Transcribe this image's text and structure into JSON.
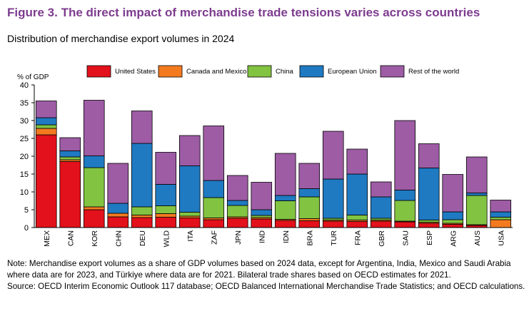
{
  "title": "Figure 3. The direct impact of merchandise trade tensions varies across countries",
  "subtitle": "Distribution of merchandise export volumes in 2024",
  "note": "Note: Merchandise export volumes as a share of GDP volumes based on 2024 data, except for Argentina, India, Mexico and Saudi Arabia where data are for 2023, and Türkiye where data are for 2021. Bilateral trade shares based on OECD estimates for 2021.",
  "source": "Source: OECD Interim Economic Outlook 117 database; OECD Balanced International Merchandise Trade Statistics; and OECD calculations.",
  "chart_data": {
    "type": "bar",
    "stacked": true,
    "ylabel": "% of GDP",
    "xlabel": "",
    "ylim": [
      0,
      40
    ],
    "yticks": [
      0,
      5,
      10,
      15,
      20,
      25,
      30,
      35,
      40
    ],
    "grid": false,
    "legend_position": "top",
    "categories": [
      "MEX",
      "CAN",
      "KOR",
      "CHN",
      "DEU",
      "WLD",
      "ITA",
      "ZAF",
      "JPN",
      "IND",
      "IDN",
      "BRA",
      "TUR",
      "FRA",
      "GBR",
      "SAU",
      "ESP",
      "ARG",
      "AUS",
      "USA"
    ],
    "series": [
      {
        "name": "United States",
        "color": "#e3111b",
        "values": [
          26.0,
          18.5,
          5.0,
          3.0,
          2.8,
          2.9,
          2.7,
          2.2,
          2.6,
          2.4,
          2.0,
          1.9,
          1.8,
          1.7,
          1.8,
          1.6,
          1.2,
          0.9,
          0.6,
          0
        ]
      },
      {
        "name": "Canada and Mexico",
        "color": "#f47a20",
        "values": [
          1.8,
          0.5,
          0.8,
          1.0,
          0.7,
          1.0,
          0.5,
          0.5,
          0.4,
          0.4,
          0.3,
          0.6,
          0.3,
          0.4,
          0.3,
          0.2,
          0.3,
          0.3,
          0.2,
          2.2
        ]
      },
      {
        "name": "China",
        "color": "#82c341",
        "values": [
          1.0,
          0.8,
          11.0,
          0,
          2.3,
          2.2,
          1.1,
          5.7,
          3.2,
          0.6,
          5.2,
          6.1,
          0.5,
          1.4,
          0.5,
          5.8,
          0.6,
          1.0,
          8.2,
          0.7
        ]
      },
      {
        "name": "European Union",
        "color": "#1f7ac2",
        "values": [
          2.0,
          1.7,
          3.3,
          2.8,
          17.8,
          6.0,
          13.0,
          4.8,
          1.4,
          1.6,
          1.5,
          2.3,
          11.0,
          11.5,
          6.0,
          2.9,
          14.6,
          2.2,
          0.7,
          1.5
        ]
      },
      {
        "name": "Rest of the world",
        "color": "#9e5ca5",
        "values": [
          4.7,
          3.7,
          15.6,
          11.2,
          9.1,
          9.0,
          8.5,
          15.3,
          7.0,
          7.7,
          11.8,
          7.1,
          13.4,
          7.0,
          4.2,
          19.5,
          6.8,
          10.5,
          10.1,
          3.3
        ]
      }
    ]
  }
}
